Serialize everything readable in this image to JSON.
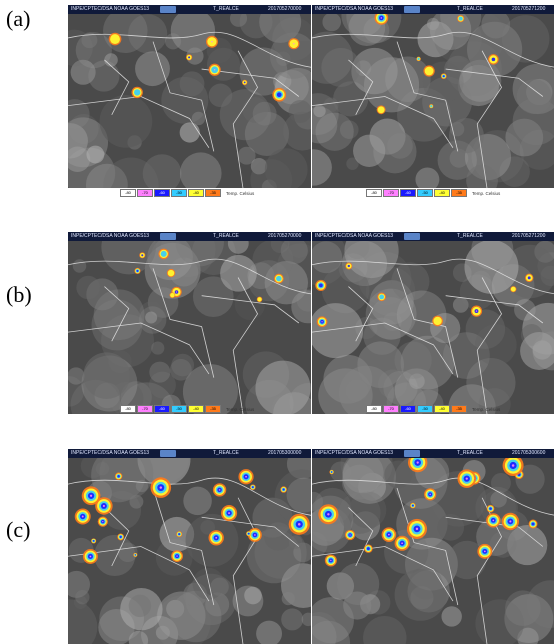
{
  "panels": [
    {
      "label": "(a)",
      "images": [
        {
          "source": "INPE/CPTEC/DSA NOAA GOES13",
          "product": "T_REALCE",
          "stamp": "201705270000"
        },
        {
          "source": "INPE/CPTEC/DSA NOAA GOES13",
          "product": "T_REALCE",
          "stamp": "201705271200"
        }
      ]
    },
    {
      "label": "(b)",
      "images": [
        {
          "source": "INPE/CPTEC/DSA NOAA GOES13",
          "product": "T_REALCE",
          "stamp": "201705270000"
        },
        {
          "source": "INPE/CPTEC/DSA NOAA GOES13",
          "product": "T_REALCE",
          "stamp": "201705271200"
        }
      ]
    },
    {
      "label": "(c)",
      "images": [
        {
          "source": "INPE/CPTEC/DSA NOAA GOES13",
          "product": "T_REALCE",
          "stamp": "201705300000"
        },
        {
          "source": "INPE/CPTEC/DSA NOAA GOES13",
          "product": "T_REALCE",
          "stamp": "201705300600"
        }
      ]
    }
  ],
  "legend": {
    "unit": "Temp. Celsius",
    "entries": [
      {
        "value": "-80",
        "color": "#ffffff"
      },
      {
        "value": "-70",
        "color": "#ff80ff"
      },
      {
        "value": "-60",
        "color": "#1a1aff"
      },
      {
        "value": "-50",
        "color": "#33ccff"
      },
      {
        "value": "-40",
        "color": "#ffff33"
      },
      {
        "value": "-35",
        "color": "#ff7a1a"
      }
    ]
  }
}
